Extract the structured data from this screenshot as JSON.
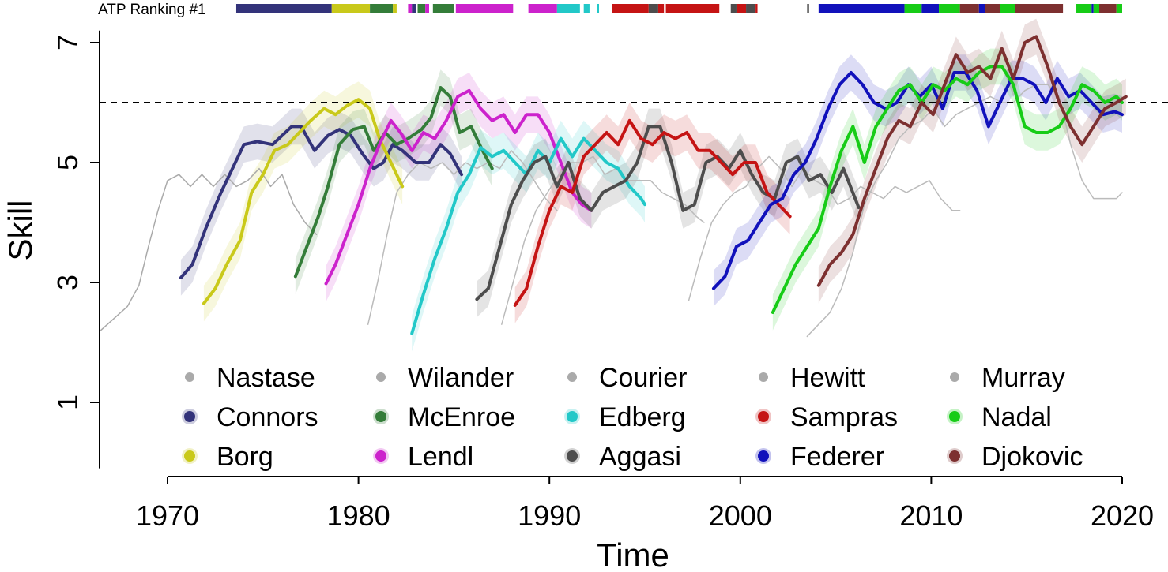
{
  "chart_data": {
    "type": "line",
    "title": "",
    "xlabel": "Time",
    "ylabel": "Skill",
    "xlim": [
      1966.5,
      2020.5
    ],
    "ylim": [
      -0.1,
      7.2
    ],
    "x_ticks": [
      1970,
      1980,
      1990,
      2000,
      2010,
      2020
    ],
    "x_tick_labels": [
      "1970",
      "1980",
      "1990",
      "2000",
      "2010",
      "2020"
    ],
    "y_ticks": [
      1,
      3,
      5,
      7
    ],
    "y_tick_labels": [
      "1",
      "3",
      "5",
      "7"
    ],
    "reference_line": {
      "y": 6.0,
      "style": "dashed"
    },
    "ranking_bar": {
      "label": "ATP Ranking #1",
      "segments": [
        {
          "player": "Connors",
          "start": 1973.6,
          "end": 1978.6
        },
        {
          "player": "Borg",
          "start": 1978.6,
          "end": 1980.6
        },
        {
          "player": "McEnroe",
          "start": 1980.6,
          "end": 1981.8
        },
        {
          "player": "Borg",
          "start": 1981.8,
          "end": 1982.0
        },
        {
          "player": "Lendl",
          "start": 1982.6,
          "end": 1982.8
        },
        {
          "player": "Connors",
          "start": 1982.8,
          "end": 1983.0
        },
        {
          "player": "McEnroe",
          "start": 1983.1,
          "end": 1983.5
        },
        {
          "player": "Lendl",
          "start": 1983.5,
          "end": 1983.7
        },
        {
          "player": "McEnroe",
          "start": 1983.9,
          "end": 1985.0
        },
        {
          "player": "Lendl",
          "start": 1985.1,
          "end": 1988.1
        },
        {
          "player": "Lendl",
          "start": 1988.9,
          "end": 1990.4
        },
        {
          "player": "Edberg",
          "start": 1990.4,
          "end": 1991.6
        },
        {
          "player": "Edberg",
          "start": 1991.8,
          "end": 1992.1
        },
        {
          "player": "Edberg",
          "start": 1992.5,
          "end": 1992.6
        },
        {
          "player": "Sampras",
          "start": 1993.3,
          "end": 1995.2
        },
        {
          "player": "Aggasi",
          "start": 1995.2,
          "end": 1995.7
        },
        {
          "player": "Sampras",
          "start": 1995.7,
          "end": 1996.0
        },
        {
          "player": "Sampras",
          "start": 1996.1,
          "end": 1998.9
        },
        {
          "player": "Aggasi",
          "start": 1999.5,
          "end": 1999.8
        },
        {
          "player": "Sampras",
          "start": 1999.8,
          "end": 2000.3
        },
        {
          "player": "Aggasi",
          "start": 2000.3,
          "end": 2000.8
        },
        {
          "player": "Sampras",
          "start": 2000.8,
          "end": 2000.9
        },
        {
          "player": "Aggasi",
          "start": 2003.5,
          "end": 2003.6
        },
        {
          "player": "Federer",
          "start": 2004.1,
          "end": 2008.6
        },
        {
          "player": "Nadal",
          "start": 2008.6,
          "end": 2009.5
        },
        {
          "player": "Federer",
          "start": 2009.5,
          "end": 2010.4
        },
        {
          "player": "Nadal",
          "start": 2010.4,
          "end": 2011.5
        },
        {
          "player": "Djokovic",
          "start": 2011.5,
          "end": 2012.5
        },
        {
          "player": "Federer",
          "start": 2012.5,
          "end": 2012.8
        },
        {
          "player": "Djokovic",
          "start": 2012.8,
          "end": 2013.6
        },
        {
          "player": "Nadal",
          "start": 2013.6,
          "end": 2014.4
        },
        {
          "player": "Djokovic",
          "start": 2014.4,
          "end": 2016.9
        },
        {
          "player": "Nadal",
          "start": 2017.6,
          "end": 2018.4
        },
        {
          "player": "Federer",
          "start": 2018.4,
          "end": 2018.5
        },
        {
          "player": "Nadal",
          "start": 2018.5,
          "end": 2018.8
        },
        {
          "player": "Djokovic",
          "start": 2018.8,
          "end": 2019.7
        },
        {
          "player": "Nadal",
          "start": 2019.7,
          "end": 2020.0
        }
      ]
    },
    "series": [
      {
        "name": "Connors",
        "color": "#33337a",
        "highlighted": true,
        "x": [
          1970.7,
          1971.3,
          1972,
          1972.8,
          1973.4,
          1974,
          1974.7,
          1975.5,
          1976.5,
          1977,
          1977.7,
          1978.4,
          1979,
          1979.6,
          1980.2,
          1980.8,
          1981.3,
          1981.8,
          1982.3,
          1983,
          1983.7,
          1984.3,
          1984.8,
          1985.4
        ],
        "y": [
          3.08,
          3.3,
          3.9,
          4.5,
          4.9,
          5.3,
          5.35,
          5.3,
          5.6,
          5.6,
          5.2,
          5.45,
          5.55,
          5.45,
          5.15,
          4.9,
          5.0,
          5.3,
          5.2,
          5.0,
          5.0,
          5.3,
          5.15,
          4.8
        ]
      },
      {
        "name": "Borg",
        "color": "#c9c91a",
        "highlighted": true,
        "x": [
          1971.9,
          1972.5,
          1973.1,
          1973.8,
          1974.4,
          1975,
          1975.6,
          1976.3,
          1976.9,
          1977.5,
          1978.2,
          1978.8,
          1979.4,
          1980,
          1980.6,
          1981.1,
          1981.7,
          1982.3
        ],
        "y": [
          2.65,
          2.9,
          3.3,
          3.7,
          4.5,
          4.8,
          5.2,
          5.3,
          5.5,
          5.7,
          5.9,
          5.8,
          5.95,
          6.05,
          5.9,
          5.4,
          5.0,
          4.6
        ]
      },
      {
        "name": "McEnroe",
        "color": "#347d39",
        "highlighted": true,
        "x": [
          1976.7,
          1977.3,
          1977.9,
          1978.4,
          1979,
          1979.7,
          1980.3,
          1980.8,
          1981.4,
          1982,
          1982.6,
          1983.3,
          1983.8,
          1984.3,
          1984.8,
          1985.3,
          1985.9,
          1986.5,
          1987
        ],
        "y": [
          3.1,
          3.6,
          4.1,
          4.6,
          5.3,
          5.55,
          5.6,
          5.2,
          5.5,
          5.3,
          5.4,
          5.55,
          5.75,
          6.25,
          6.1,
          5.5,
          5.6,
          5.2,
          4.9
        ]
      },
      {
        "name": "Lendl",
        "color": "#cc22cc",
        "highlighted": true,
        "x": [
          1978.3,
          1978.8,
          1979.4,
          1980,
          1980.6,
          1981.1,
          1981.7,
          1982.2,
          1982.8,
          1983.4,
          1984,
          1984.6,
          1985.2,
          1985.8,
          1986.4,
          1987,
          1987.6,
          1988.2,
          1988.8,
          1989.4,
          1990,
          1990.6,
          1991.2,
          1991.7,
          1992.2
        ],
        "y": [
          2.98,
          3.3,
          3.8,
          4.3,
          4.9,
          5.3,
          5.7,
          5.5,
          5.2,
          5.5,
          5.4,
          5.7,
          6.1,
          6.2,
          5.9,
          5.7,
          5.8,
          5.5,
          5.8,
          5.8,
          5.5,
          5.0,
          4.5,
          4.3,
          4.2
        ]
      },
      {
        "name": "Edberg",
        "color": "#22c8c8",
        "highlighted": true,
        "x": [
          1982.8,
          1983.4,
          1984,
          1984.6,
          1985.2,
          1985.8,
          1986.4,
          1987,
          1987.6,
          1988.2,
          1988.8,
          1989.4,
          1990,
          1990.6,
          1991.2,
          1991.8,
          1992.4,
          1993,
          1993.6,
          1994.2,
          1994.8,
          1995
        ],
        "y": [
          2.15,
          2.8,
          3.4,
          3.9,
          4.5,
          4.8,
          5.25,
          5.1,
          5.2,
          5.0,
          4.8,
          5.2,
          5.0,
          5.4,
          5.1,
          5.4,
          5.2,
          5.0,
          4.9,
          4.6,
          4.4,
          4.3
        ]
      },
      {
        "name": "Aggasi",
        "color": "#4d4d4d",
        "highlighted": true,
        "x": [
          1986.2,
          1986.8,
          1987.4,
          1988,
          1988.6,
          1989.2,
          1989.8,
          1990.4,
          1991,
          1991.6,
          1992.2,
          1992.8,
          1993.4,
          1994,
          1994.6,
          1995.2,
          1995.8,
          1996.4,
          1997,
          1997.6,
          1998.2,
          1998.8,
          1999.4,
          2000,
          2000.6,
          2001.2,
          2001.8,
          2002.4,
          2003,
          2003.6,
          2004.2,
          2004.8,
          2005.4,
          2006.2
        ],
        "y": [
          2.72,
          2.9,
          3.6,
          4.3,
          4.7,
          5.0,
          5.1,
          4.6,
          5.0,
          4.4,
          4.2,
          4.5,
          4.6,
          4.7,
          5.0,
          5.6,
          5.6,
          5.0,
          4.2,
          4.3,
          5.0,
          5.1,
          4.9,
          5.2,
          4.8,
          4.5,
          4.4,
          5.0,
          5.1,
          4.7,
          4.8,
          4.5,
          4.9,
          4.25
        ]
      },
      {
        "name": "Sampras",
        "color": "#c51414",
        "highlighted": true,
        "x": [
          1988.2,
          1988.8,
          1989.4,
          1990,
          1990.6,
          1991.2,
          1991.8,
          1992.4,
          1993,
          1993.6,
          1994.2,
          1994.8,
          1995.4,
          1996,
          1996.6,
          1997.2,
          1997.8,
          1998.4,
          1999,
          1999.6,
          2000.2,
          2000.8,
          2001.4,
          2002,
          2002.6
        ],
        "y": [
          2.62,
          2.9,
          3.6,
          4.2,
          4.6,
          4.5,
          5.1,
          5.3,
          5.5,
          5.3,
          5.7,
          5.4,
          5.3,
          5.5,
          5.4,
          5.5,
          5.2,
          5.2,
          5.0,
          4.8,
          5.0,
          5.0,
          4.5,
          4.3,
          4.1
        ]
      },
      {
        "name": "Federer",
        "color": "#1111bb",
        "highlighted": true,
        "x": [
          1998.6,
          1999.2,
          1999.8,
          2000.4,
          2001,
          2001.6,
          2002.2,
          2002.8,
          2003.4,
          2004,
          2004.6,
          2005.2,
          2005.8,
          2006.4,
          2007,
          2007.6,
          2008.2,
          2008.8,
          2009.4,
          2010,
          2010.6,
          2011.2,
          2011.8,
          2012.4,
          2013,
          2013.6,
          2014.2,
          2014.8,
          2015.4,
          2016,
          2016.6,
          2017.2,
          2017.8,
          2018.4,
          2019,
          2019.6,
          2020
        ],
        "y": [
          2.9,
          3.1,
          3.6,
          3.7,
          4.0,
          4.3,
          4.4,
          4.8,
          5.0,
          5.4,
          5.9,
          6.3,
          6.5,
          6.3,
          6.0,
          5.9,
          6.0,
          6.3,
          6.1,
          6.3,
          5.9,
          6.5,
          6.5,
          6.2,
          5.6,
          6.0,
          6.4,
          6.4,
          6.3,
          6.0,
          6.4,
          6.1,
          6.2,
          6.0,
          5.8,
          5.85,
          5.8
        ]
      },
      {
        "name": "Nadal",
        "color": "#17cc17",
        "highlighted": true,
        "x": [
          2001.7,
          2002.3,
          2002.9,
          2003.5,
          2004.1,
          2004.7,
          2005.3,
          2005.9,
          2006.5,
          2007.1,
          2007.7,
          2008.3,
          2008.9,
          2009.5,
          2010.1,
          2010.7,
          2011.3,
          2011.9,
          2012.5,
          2013.1,
          2013.7,
          2014.3,
          2014.9,
          2015.5,
          2016.1,
          2016.7,
          2017.3,
          2017.9,
          2018.5,
          2019.1,
          2019.7,
          2020
        ],
        "y": [
          2.5,
          2.9,
          3.3,
          3.6,
          3.9,
          4.6,
          5.2,
          5.6,
          5.0,
          5.6,
          5.9,
          6.2,
          6.3,
          6.0,
          6.3,
          6.2,
          6.4,
          6.3,
          6.5,
          6.6,
          6.6,
          6.3,
          5.6,
          5.5,
          5.5,
          5.6,
          5.9,
          6.3,
          6.2,
          6.0,
          6.1,
          6.0
        ]
      },
      {
        "name": "Djokovic",
        "color": "#7d3030",
        "highlighted": true,
        "x": [
          2004.1,
          2004.7,
          2005.3,
          2005.9,
          2006.5,
          2007.1,
          2007.7,
          2008.3,
          2008.9,
          2009.5,
          2010.1,
          2010.7,
          2011.3,
          2011.9,
          2012.5,
          2013.1,
          2013.7,
          2014.3,
          2014.9,
          2015.5,
          2016.1,
          2016.7,
          2017.3,
          2017.9,
          2018.5,
          2019.1,
          2019.7,
          2020.2
        ],
        "y": [
          2.95,
          3.3,
          3.5,
          3.8,
          4.4,
          4.9,
          5.4,
          5.7,
          5.6,
          6.0,
          5.8,
          6.3,
          6.8,
          6.5,
          6.6,
          6.4,
          6.9,
          6.4,
          7.0,
          7.1,
          6.6,
          6.0,
          5.6,
          5.3,
          5.6,
          5.9,
          6.0,
          6.1
        ]
      },
      {
        "name": "Nastase",
        "color": "#aaaaaa",
        "highlighted": false,
        "x": [
          1966.5,
          1967.2,
          1967.9,
          1968.5,
          1969,
          1969.5,
          1970,
          1970.6,
          1971.2,
          1971.8,
          1972.4,
          1973,
          1973.6,
          1974.2,
          1974.8,
          1975.4,
          1976,
          1976.6,
          1977.2,
          1977.8
        ],
        "y": [
          2.2,
          2.4,
          2.6,
          2.95,
          3.6,
          4.2,
          4.7,
          4.8,
          4.6,
          4.8,
          4.6,
          4.8,
          4.6,
          4.7,
          4.9,
          4.6,
          4.8,
          4.3,
          4.0,
          3.8
        ]
      },
      {
        "name": "Wilander",
        "color": "#bbbbbb",
        "highlighted": false,
        "x": [
          1980.5,
          1981,
          1981.5,
          1982,
          1982.6,
          1983.2,
          1983.8,
          1984.4,
          1985,
          1985.6,
          1986.2,
          1986.8,
          1987.4,
          1988,
          1988.6,
          1989.2,
          1989.8,
          1990.4
        ],
        "y": [
          2.3,
          3.0,
          3.8,
          4.5,
          4.8,
          5.0,
          4.9,
          5.0,
          4.8,
          5.0,
          4.9,
          5.0,
          4.9,
          5.2,
          5.0,
          4.7,
          4.4,
          4.2
        ]
      },
      {
        "name": "Courier",
        "color": "#bbbbbb",
        "highlighted": false,
        "x": [
          1987.5,
          1988.1,
          1988.7,
          1989.3,
          1989.9,
          1990.5,
          1991.1,
          1991.7,
          1992.3,
          1992.9,
          1993.5,
          1994.1,
          1994.7,
          1995.3,
          1995.9,
          1996.5,
          1997.1,
          1997.7,
          1998.1
        ],
        "y": [
          2.3,
          3.0,
          3.7,
          4.2,
          4.5,
          4.8,
          5.0,
          5.0,
          5.1,
          4.8,
          4.9,
          4.7,
          4.7,
          4.7,
          4.5,
          4.4,
          4.3,
          4.1,
          4.0
        ]
      },
      {
        "name": "Hewitt",
        "color": "#bbbbbb",
        "highlighted": false,
        "x": [
          1997.3,
          1997.9,
          1998.5,
          1999.1,
          1999.7,
          2000.3,
          2000.9,
          2001.5,
          2002.1,
          2002.7,
          2003.3,
          2003.9,
          2004.5,
          2005.1,
          2005.7,
          2006.3,
          2006.9,
          2007.5,
          2008.1,
          2008.7,
          2009.3,
          2009.9,
          2010.5,
          2011.1,
          2011.5
        ],
        "y": [
          2.7,
          3.4,
          4.0,
          4.3,
          4.5,
          4.6,
          4.9,
          5.1,
          4.9,
          4.6,
          4.9,
          4.7,
          4.6,
          4.3,
          4.4,
          4.6,
          4.5,
          4.4,
          4.6,
          4.5,
          4.6,
          4.7,
          4.4,
          4.2,
          4.2
        ]
      },
      {
        "name": "Murray",
        "color": "#bbbbbb",
        "highlighted": false,
        "x": [
          2003.5,
          2004.1,
          2004.7,
          2005.3,
          2005.9,
          2006.5,
          2007.1,
          2007.7,
          2008.3,
          2008.9,
          2009.5,
          2010.1,
          2010.7,
          2011.3,
          2011.9,
          2012.5,
          2013.1,
          2013.7,
          2014.3,
          2014.9,
          2015.5,
          2016.1,
          2016.7,
          2017.3,
          2017.9,
          2018.5,
          2019.1,
          2019.7,
          2020
        ],
        "y": [
          2.1,
          2.3,
          2.5,
          2.9,
          3.5,
          4.3,
          4.7,
          5.0,
          5.4,
          5.6,
          5.7,
          5.9,
          5.6,
          5.8,
          5.9,
          6.0,
          6.1,
          6.0,
          6.0,
          6.2,
          6.3,
          6.3,
          6.1,
          5.3,
          4.7,
          4.4,
          4.4,
          4.4,
          4.5
        ]
      }
    ],
    "legend": {
      "placement": "bottom",
      "columns": [
        [
          "Nastase",
          "Connors",
          "Borg"
        ],
        [
          "Wilander",
          "McEnroe",
          "Lendl"
        ],
        [
          "Courier",
          "Edberg",
          "Aggasi"
        ],
        [
          "Hewitt",
          "Sampras",
          "Federer"
        ],
        [
          "Murray",
          "Nadal",
          "Djokovic"
        ]
      ]
    }
  }
}
